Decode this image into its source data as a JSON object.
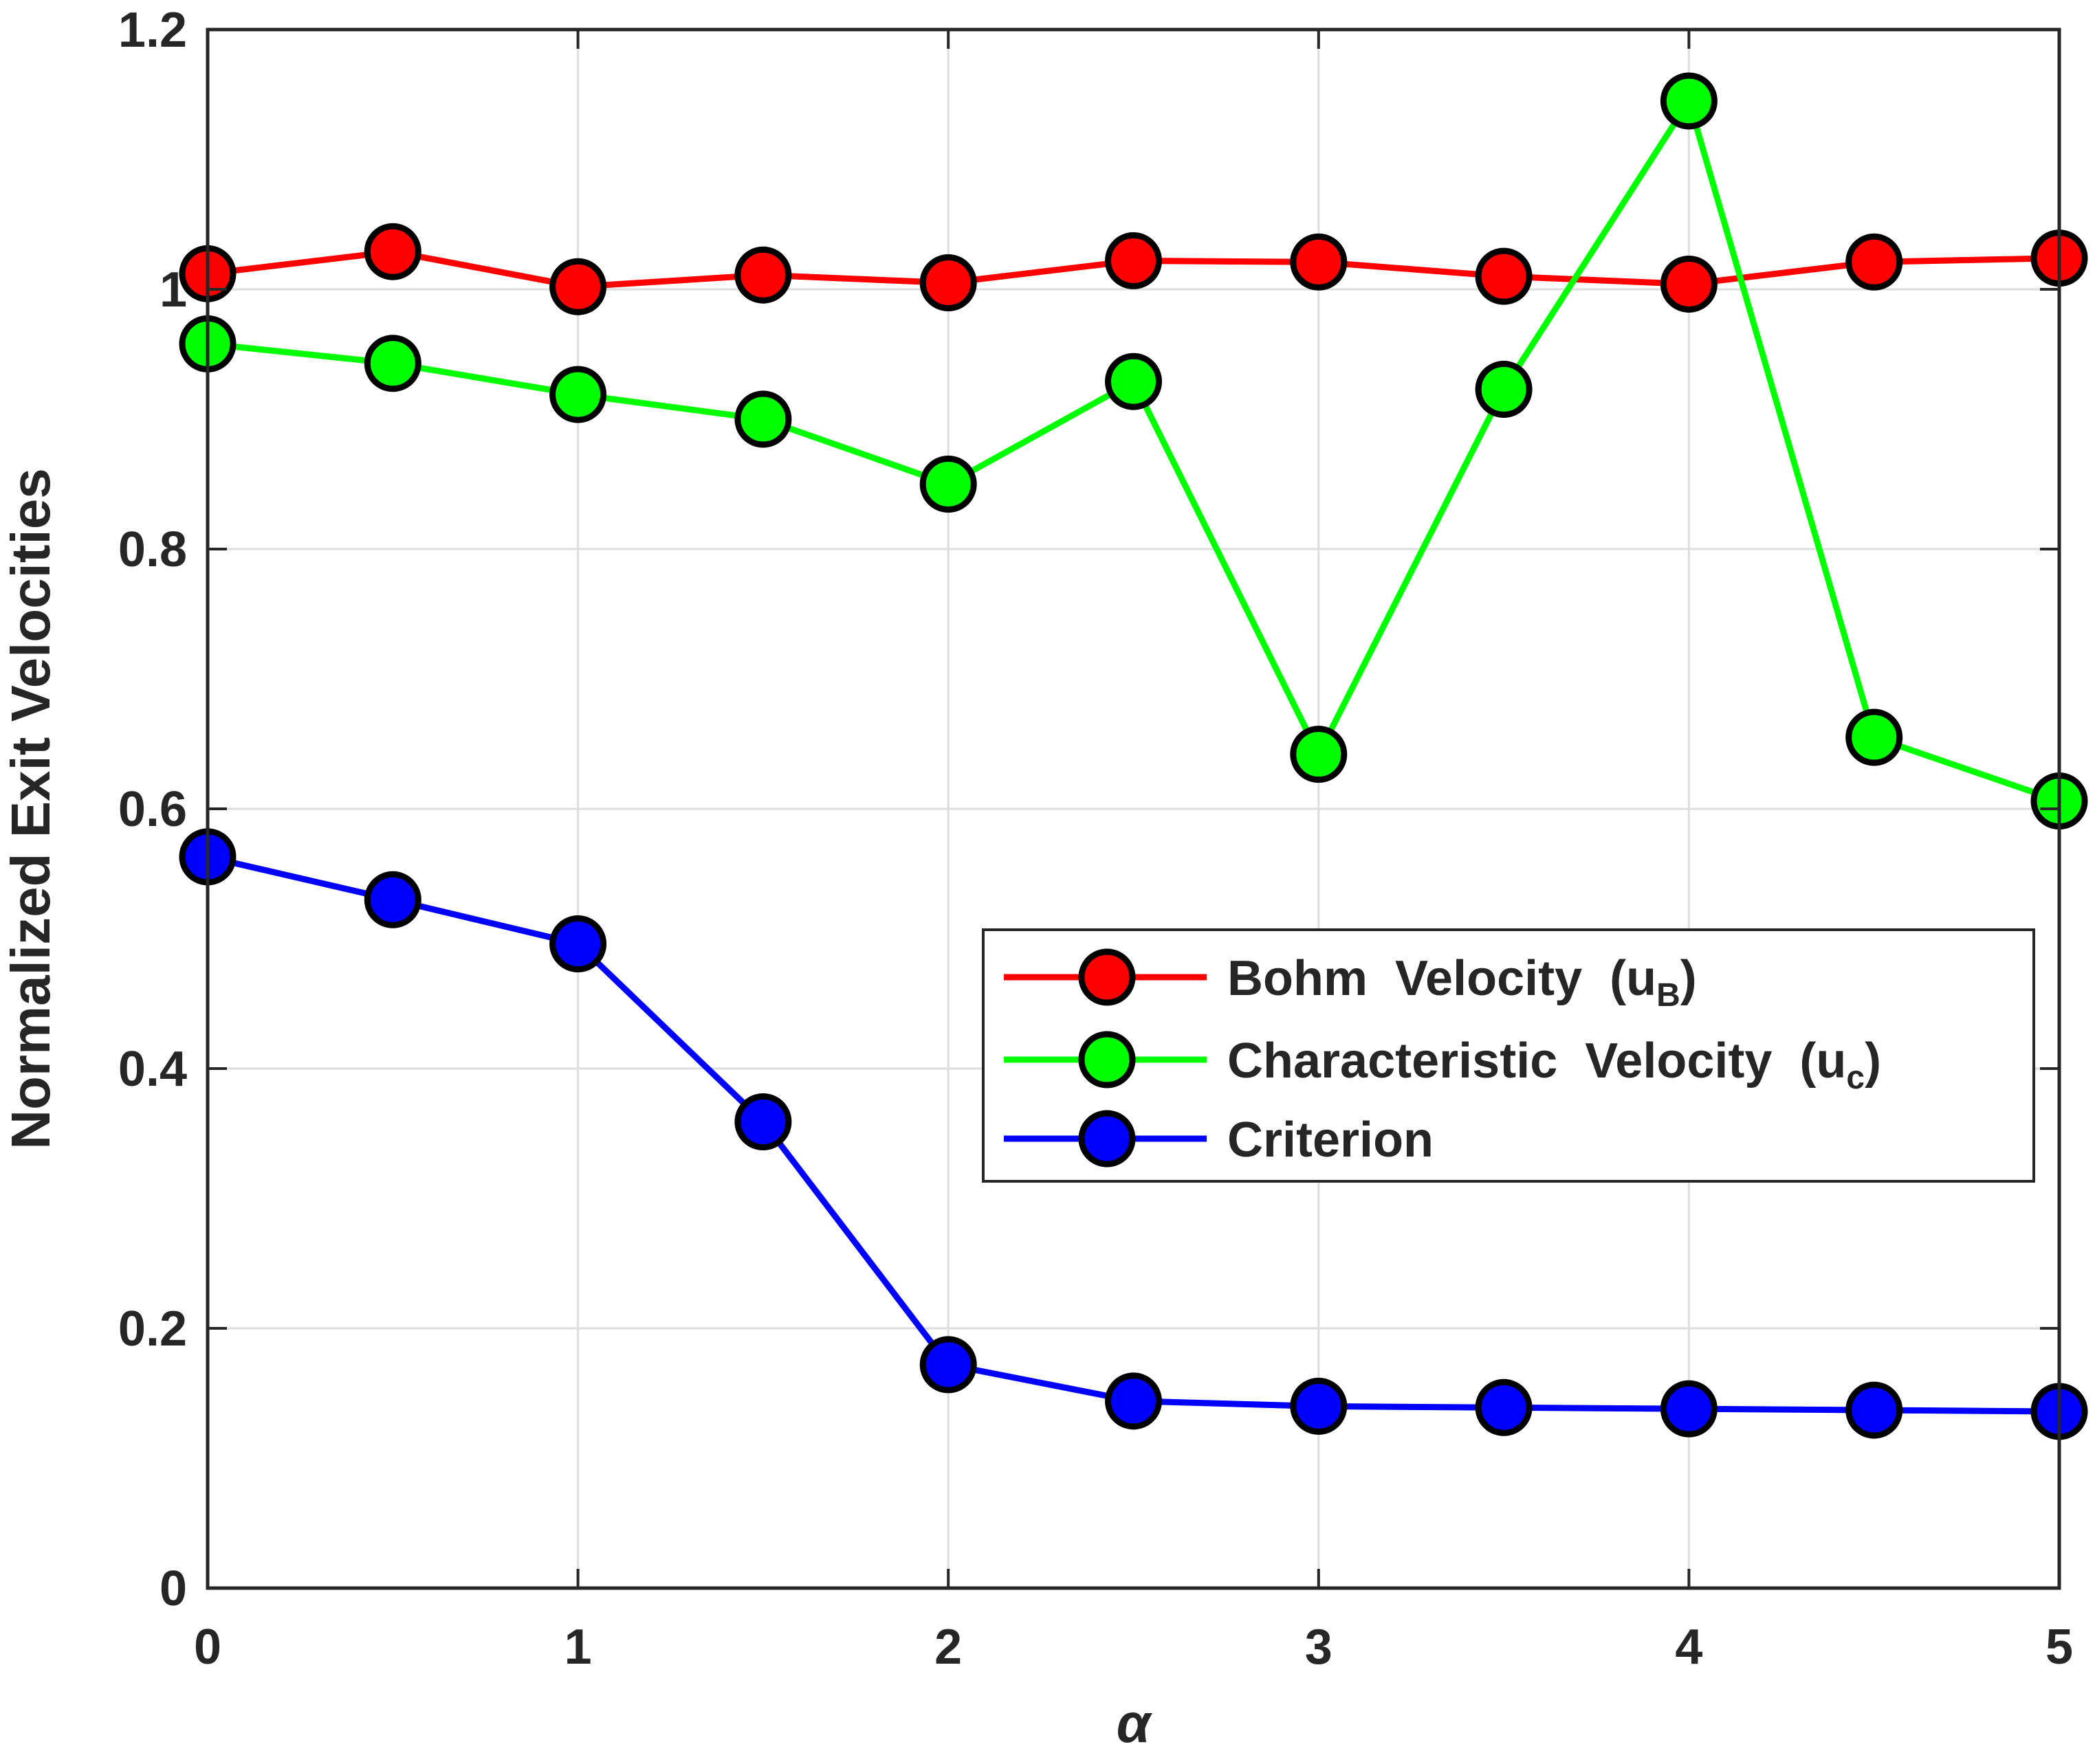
{
  "chart_data": {
    "type": "line",
    "xlabel": "α",
    "ylabel": "Normalized Exit Velocities",
    "xlim": [
      0,
      5
    ],
    "ylim": [
      0,
      1.2
    ],
    "xticks": [
      "0",
      "1",
      "2",
      "3",
      "4",
      "5"
    ],
    "yticks": [
      "0",
      "0.2",
      "0.4",
      "0.6",
      "0.8",
      "1",
      "1.2"
    ],
    "grid": true,
    "legend_position": "right-center",
    "x": [
      0,
      0.5,
      1,
      1.5,
      2,
      2.5,
      3,
      3.5,
      4,
      4.5,
      5
    ],
    "series": [
      {
        "name": "Bohm  Velocity  (u",
        "name_sub": "B",
        "name_tail": ")",
        "color": "#ff0000",
        "values": [
          1.012,
          1.029,
          1.002,
          1.011,
          1.005,
          1.022,
          1.021,
          1.01,
          1.004,
          1.021,
          1.024
        ]
      },
      {
        "name": "Characteristic  Velocity  (u",
        "name_sub": "c",
        "name_tail": ")",
        "color": "#00ff00",
        "values": [
          0.958,
          0.943,
          0.919,
          0.9,
          0.85,
          0.929,
          0.642,
          0.923,
          1.145,
          0.655,
          0.606
        ]
      },
      {
        "name": "Criterion",
        "name_sub": "",
        "name_tail": "",
        "color": "#0000ff",
        "values": [
          0.563,
          0.53,
          0.496,
          0.359,
          0.172,
          0.144,
          0.14,
          0.139,
          0.138,
          0.137,
          0.136
        ]
      }
    ]
  }
}
